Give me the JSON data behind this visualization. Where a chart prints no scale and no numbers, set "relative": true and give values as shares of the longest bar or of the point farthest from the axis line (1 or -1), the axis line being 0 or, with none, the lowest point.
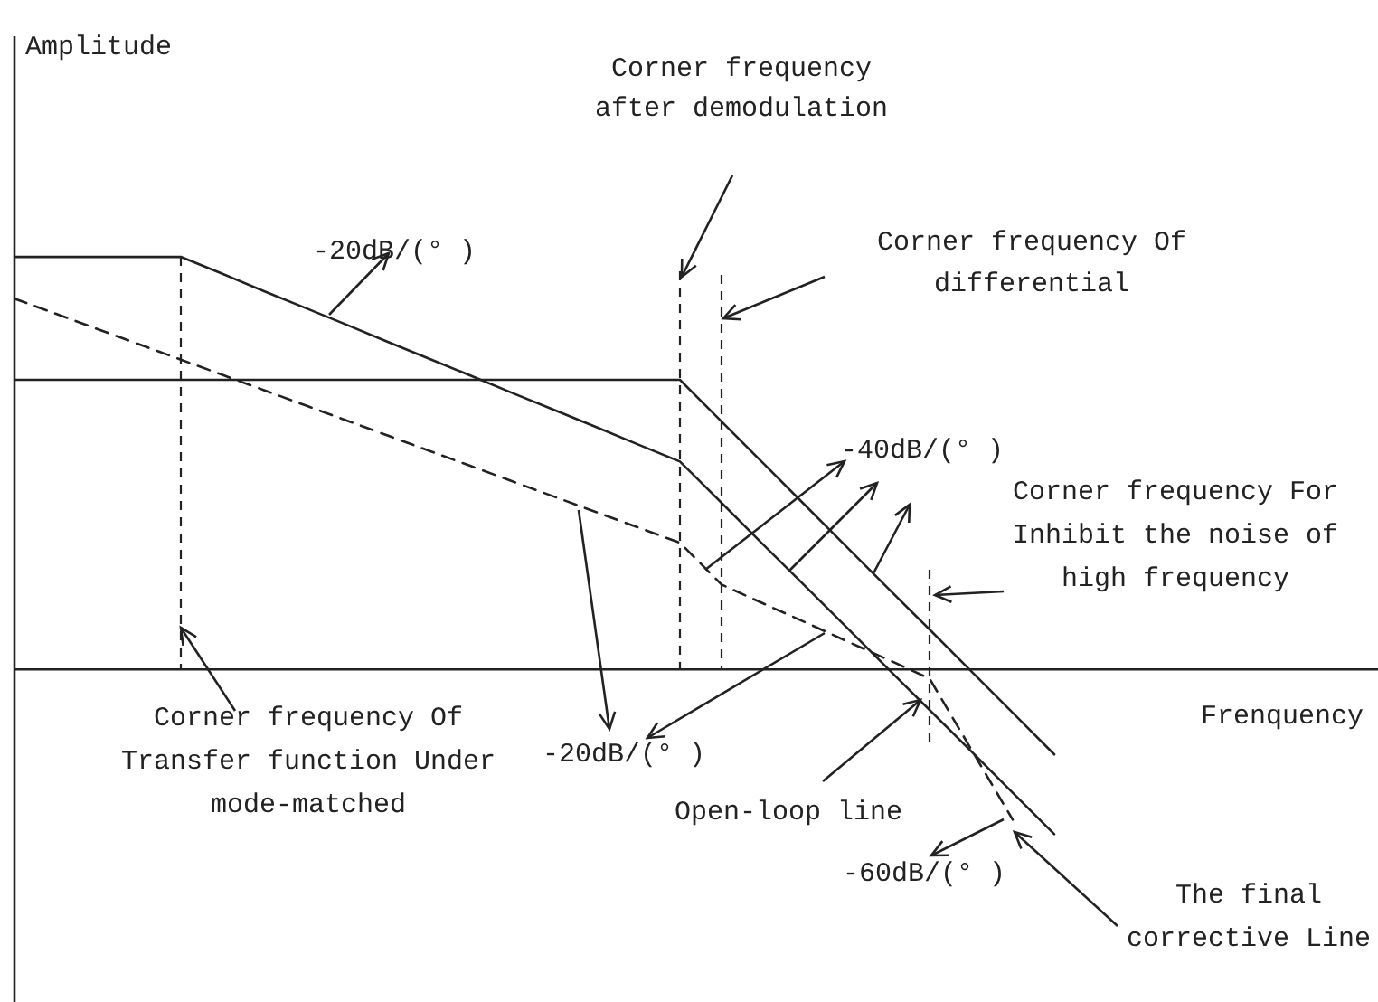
{
  "chart_data": {
    "type": "line",
    "relative": true,
    "xlabel": "Frenquency",
    "tick_labels": false,
    "legend": false,
    "marker": "none",
    "categories": [
      null,
      null,
      null,
      null,
      null,
      null,
      null,
      null,
      null,
      null,
      null,
      null,
      null,
      null,
      null,
      null,
      null,
      null,
      null,
      null,
      null,
      null,
      null,
      null,
      null,
      null,
      null,
      null,
      null,
      null,
      null,
      null,
      null
    ],
    "series": [
      {
        "color": "#222222",
        "line_style": "solid",
        "values": [
          1,
          1,
          1,
          1,
          1,
          0.959,
          0.917,
          0.876,
          0.835,
          0.793,
          0.752,
          0.711,
          0.669,
          0.628,
          0.587,
          0.545,
          0.504,
          0.404,
          0.303,
          0.203,
          0.103,
          0.002,
          -0.098,
          -0.198,
          -0.299,
          -0.399,
          null,
          null,
          null,
          null,
          null,
          null,
          null
        ]
      },
      {
        "color": "#222222",
        "line_style": "solid",
        "values": [
          0.702,
          0.702,
          0.702,
          0.702,
          0.702,
          0.702,
          0.702,
          0.702,
          0.702,
          0.702,
          0.702,
          0.702,
          0.702,
          0.702,
          0.702,
          0.702,
          0.702,
          0.601,
          0.5,
          0.399,
          0.298,
          0.197,
          0.097,
          -0.004,
          -0.105,
          -0.206,
          null,
          null,
          null,
          null,
          null,
          null,
          null
        ]
      },
      {
        "color": "#222222",
        "line_style": "dashed",
        "values": [
          0.899,
          0.862,
          0.825,
          0.788,
          0.751,
          0.714,
          0.677,
          0.64,
          0.603,
          0.566,
          0.529,
          0.492,
          0.455,
          0.418,
          0.381,
          0.344,
          0.307,
          0.206,
          0.16,
          0.115,
          0.069,
          0.024,
          -0.022,
          -0.193,
          -0.364,
          null,
          null,
          null,
          null,
          null,
          null,
          null,
          null
        ]
      }
    ],
    "annotations": [
      "-20dB/(° )",
      "Corner frequency\nafter demodulation",
      "Corner frequency Of\ndifferential",
      "-40dB/(° )",
      "Corner frequency For\nInhibit the noise of\nhigh frequency",
      "Corner frequency Of\nTransfer function Under\nmode-matched",
      "-20dB/(° )",
      "Open-loop line",
      "-60dB/(° )",
      "The final\ncorrective Line",
      "Amplitude"
    ]
  }
}
